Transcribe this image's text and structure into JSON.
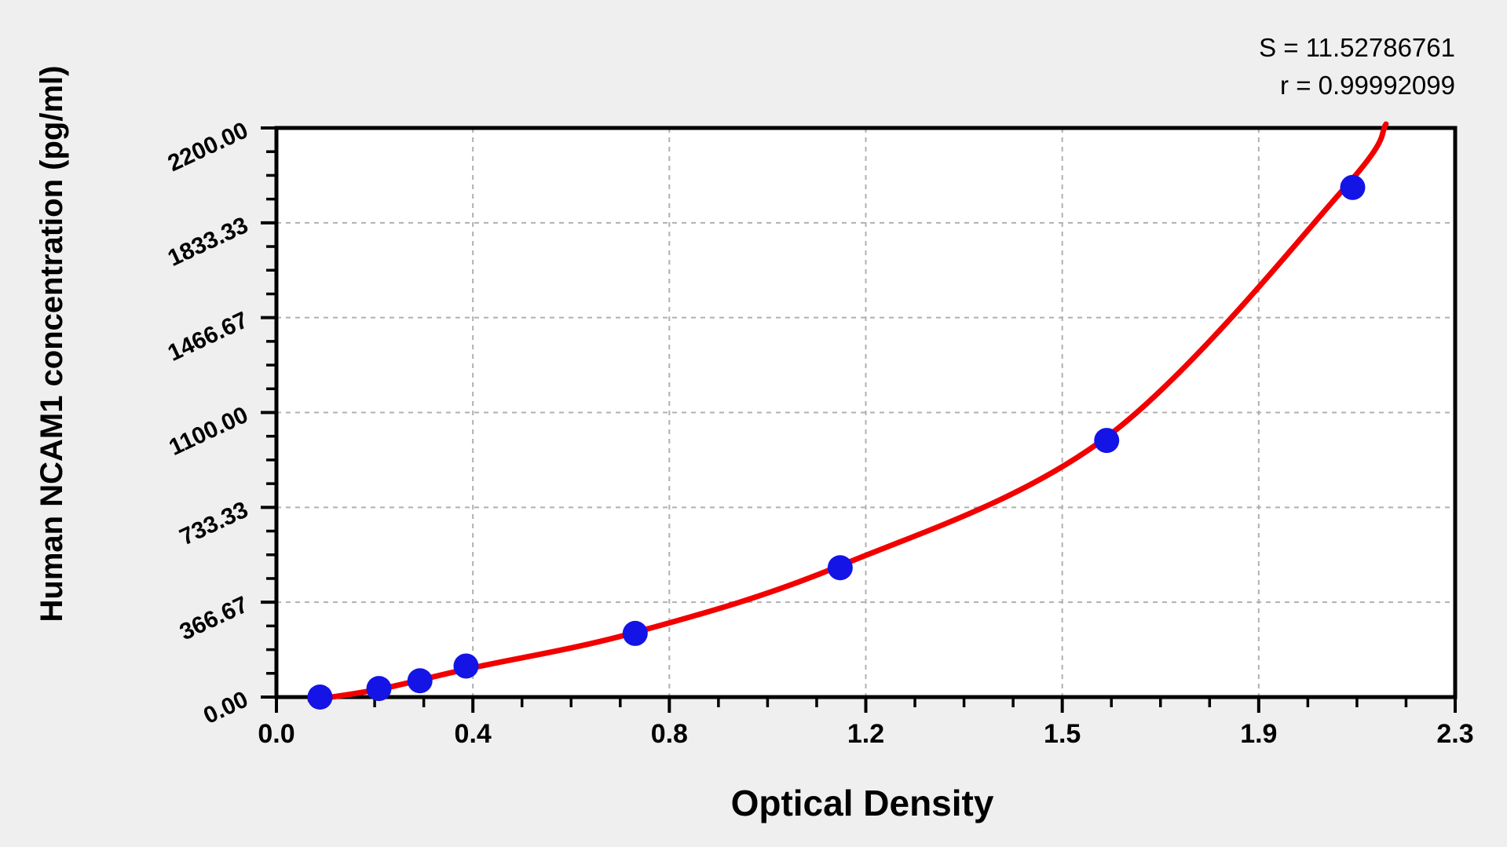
{
  "annotation": {
    "s_label": "S = 11.52786761",
    "r_label": "r = 0.99992099"
  },
  "chart_data": {
    "type": "scatter",
    "title": "",
    "xlabel": "Optical Density",
    "ylabel": "Human NCAM1 concentration (pg/ml)",
    "xlim": [
      0,
      2.3
    ],
    "ylim": [
      0,
      2200
    ],
    "grid": "dashed-major",
    "legend": "none",
    "x_ticks": {
      "values": [
        0,
        0.38333,
        0.76667,
        1.15,
        1.53333,
        1.91667,
        2.3
      ],
      "labels": [
        "0.0",
        "0.4",
        "0.8",
        "1.2",
        "1.5",
        "1.9",
        "2.3"
      ]
    },
    "y_ticks": {
      "values": [
        0,
        366.67,
        733.33,
        1100,
        1466.67,
        1833.33,
        2200
      ],
      "labels": [
        "0.00",
        "366.67",
        "733.33",
        "1100.00",
        "1466.67",
        "1833.33",
        "2200.00"
      ]
    },
    "minor_divisions_per_major": 4,
    "series": [
      {
        "name": "standard-points",
        "marker": "circle",
        "points": [
          [
            0.085,
            0
          ],
          [
            0.2,
            33
          ],
          [
            0.28,
            63
          ],
          [
            0.37,
            120
          ],
          [
            0.7,
            246
          ],
          [
            1.1,
            500
          ],
          [
            1.62,
            992
          ],
          [
            2.1,
            1970
          ]
        ]
      }
    ],
    "fit_curve": {
      "name": "regression-curve",
      "anchors": [
        [
          0.066,
          -12
        ],
        [
          0.2,
          30
        ],
        [
          0.38,
          112
        ],
        [
          0.7,
          250
        ],
        [
          1.1,
          508
        ],
        [
          1.62,
          1005
        ],
        [
          2.085,
          1970
        ],
        [
          2.165,
          2215
        ]
      ]
    },
    "colors": {
      "point": "#1414e6",
      "curve": "#f20000",
      "grid": "#b0b0b0",
      "axis": "#000000",
      "text": "#000000",
      "page_bg": "#efefef",
      "plot_bg": "#ffffff"
    }
  }
}
